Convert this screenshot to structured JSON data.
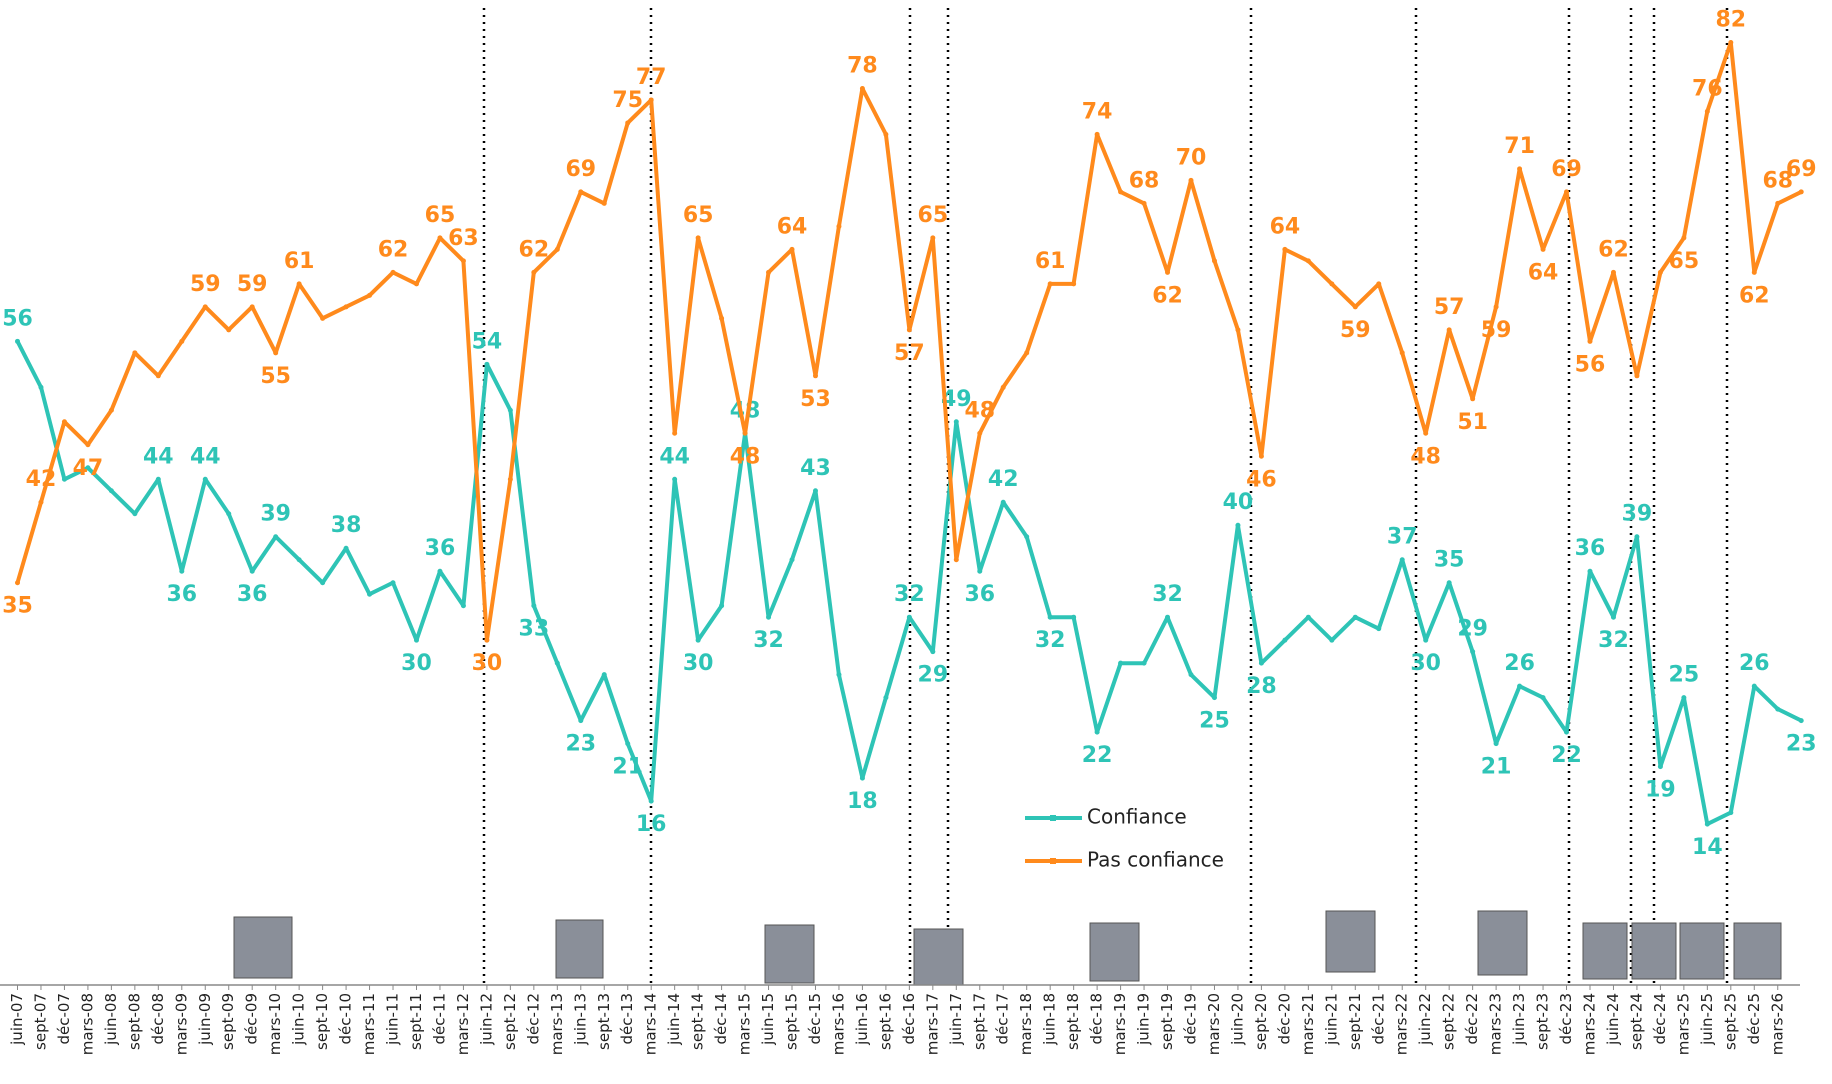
{
  "chart_data": {
    "type": "line",
    "categories": [
      "juin-07",
      "sept-07",
      "déc-07",
      "mars-08",
      "juin-08",
      "sept-08",
      "déc-08",
      "mars-09",
      "juin-09",
      "sept-09",
      "déc-09",
      "mars-10",
      "juin-10",
      "sept-10",
      "déc-10",
      "mars-11",
      "juin-11",
      "sept-11",
      "déc-11",
      "mars-12",
      "juin-12",
      "sept-12",
      "déc-12",
      "mars-13",
      "juin-13",
      "sept-13",
      "déc-13",
      "mars-14",
      "juin-14",
      "sept-14",
      "déc-14",
      "mars-15",
      "juin-15",
      "sept-15",
      "déc-15",
      "mars-16",
      "juin-16",
      "sept-16",
      "déc-16",
      "mars-17",
      "juin-17",
      "sept-17",
      "déc-17",
      "mars-18",
      "juin-18",
      "sept-18",
      "déc-18",
      "mars-19",
      "juin-19",
      "sept-19",
      "déc-19",
      "mars-20",
      "juin-20",
      "sept-20",
      "déc-20",
      "mars-21",
      "juin-21",
      "sept-21",
      "déc-21",
      "mars-22",
      "juin-22",
      "sept-22",
      "déc-22",
      "mars-23",
      "juin-23",
      "sept-23",
      "déc-23",
      "mars-24",
      "juin-24",
      "sept-24",
      "déc-24",
      "mars-25",
      "juin-25",
      "sept-25",
      "déc-25",
      "mars-26",
      null
    ],
    "ylim": [
      0,
      85
    ],
    "series": [
      {
        "name": "Confiance",
        "color": "#2ec4b6",
        "values": [
          56,
          52,
          44,
          45,
          43,
          41,
          44,
          36,
          44,
          41,
          36,
          39,
          37,
          35,
          38,
          34,
          35,
          30,
          36,
          33,
          54,
          50,
          33,
          28,
          23,
          27,
          21,
          16,
          44,
          30,
          33,
          48,
          32,
          37,
          43,
          27,
          18,
          25,
          32,
          29,
          49,
          36,
          42,
          39,
          32,
          32,
          22,
          28,
          28,
          32,
          27,
          25,
          40,
          28,
          30,
          32,
          30,
          32,
          31,
          37,
          30,
          35,
          29,
          21,
          26,
          25,
          22,
          36,
          32,
          39,
          19,
          25,
          14,
          15,
          26,
          24,
          23
        ],
        "value_labels": [
          "56",
          null,
          null,
          null,
          null,
          null,
          "44",
          "36",
          "44",
          null,
          "36",
          "39",
          null,
          null,
          "38",
          null,
          null,
          "30",
          "36",
          null,
          "54",
          null,
          "33",
          null,
          "23",
          null,
          "21",
          "16",
          "44",
          "30",
          null,
          "48",
          "32",
          null,
          "43",
          null,
          "18",
          null,
          "32",
          "29",
          "49",
          "36",
          "42",
          null,
          "32",
          null,
          "22",
          null,
          null,
          "32",
          null,
          "25",
          "40",
          "28",
          null,
          null,
          null,
          null,
          null,
          "37",
          "30",
          "35",
          "29",
          "21",
          "26",
          null,
          "22",
          "36",
          "32",
          "39",
          "19",
          "25",
          "14",
          null,
          "26",
          null,
          "23"
        ]
      },
      {
        "name": "Pas confiance",
        "color": "#ff8a1c",
        "values": [
          35,
          42,
          49,
          47,
          50,
          55,
          53,
          56,
          59,
          57,
          59,
          55,
          61,
          58,
          59,
          60,
          62,
          61,
          65,
          63,
          30,
          44,
          62,
          64,
          69,
          68,
          75,
          77,
          48,
          65,
          58,
          48,
          62,
          64,
          53,
          66,
          78,
          74,
          57,
          65,
          37,
          48,
          52,
          55,
          61,
          61,
          74,
          69,
          68,
          62,
          70,
          63,
          57,
          46,
          64,
          63,
          61,
          59,
          61,
          55,
          48,
          57,
          51,
          59,
          71,
          64,
          69,
          56,
          62,
          53,
          62,
          65,
          76,
          82,
          62,
          68,
          69
        ],
        "value_labels": [
          "35",
          "42",
          null,
          "47",
          null,
          null,
          null,
          null,
          "59",
          null,
          "59",
          "55",
          "61",
          null,
          null,
          null,
          "62",
          null,
          "65",
          "63",
          "30",
          null,
          "62",
          null,
          "69",
          null,
          "75",
          "77",
          null,
          "65",
          null,
          "48",
          null,
          "64",
          "53",
          null,
          "78",
          null,
          "57",
          "65",
          null,
          "48",
          null,
          null,
          "61",
          null,
          "74",
          null,
          "68",
          "62",
          "70",
          null,
          null,
          "46",
          "64",
          null,
          null,
          "59",
          null,
          null,
          "48",
          "57",
          "51",
          "59",
          "71",
          "64",
          "69",
          "56",
          "62",
          null,
          null,
          "65",
          "76",
          "82",
          "62",
          "68",
          "69"
        ]
      }
    ]
  }
}
